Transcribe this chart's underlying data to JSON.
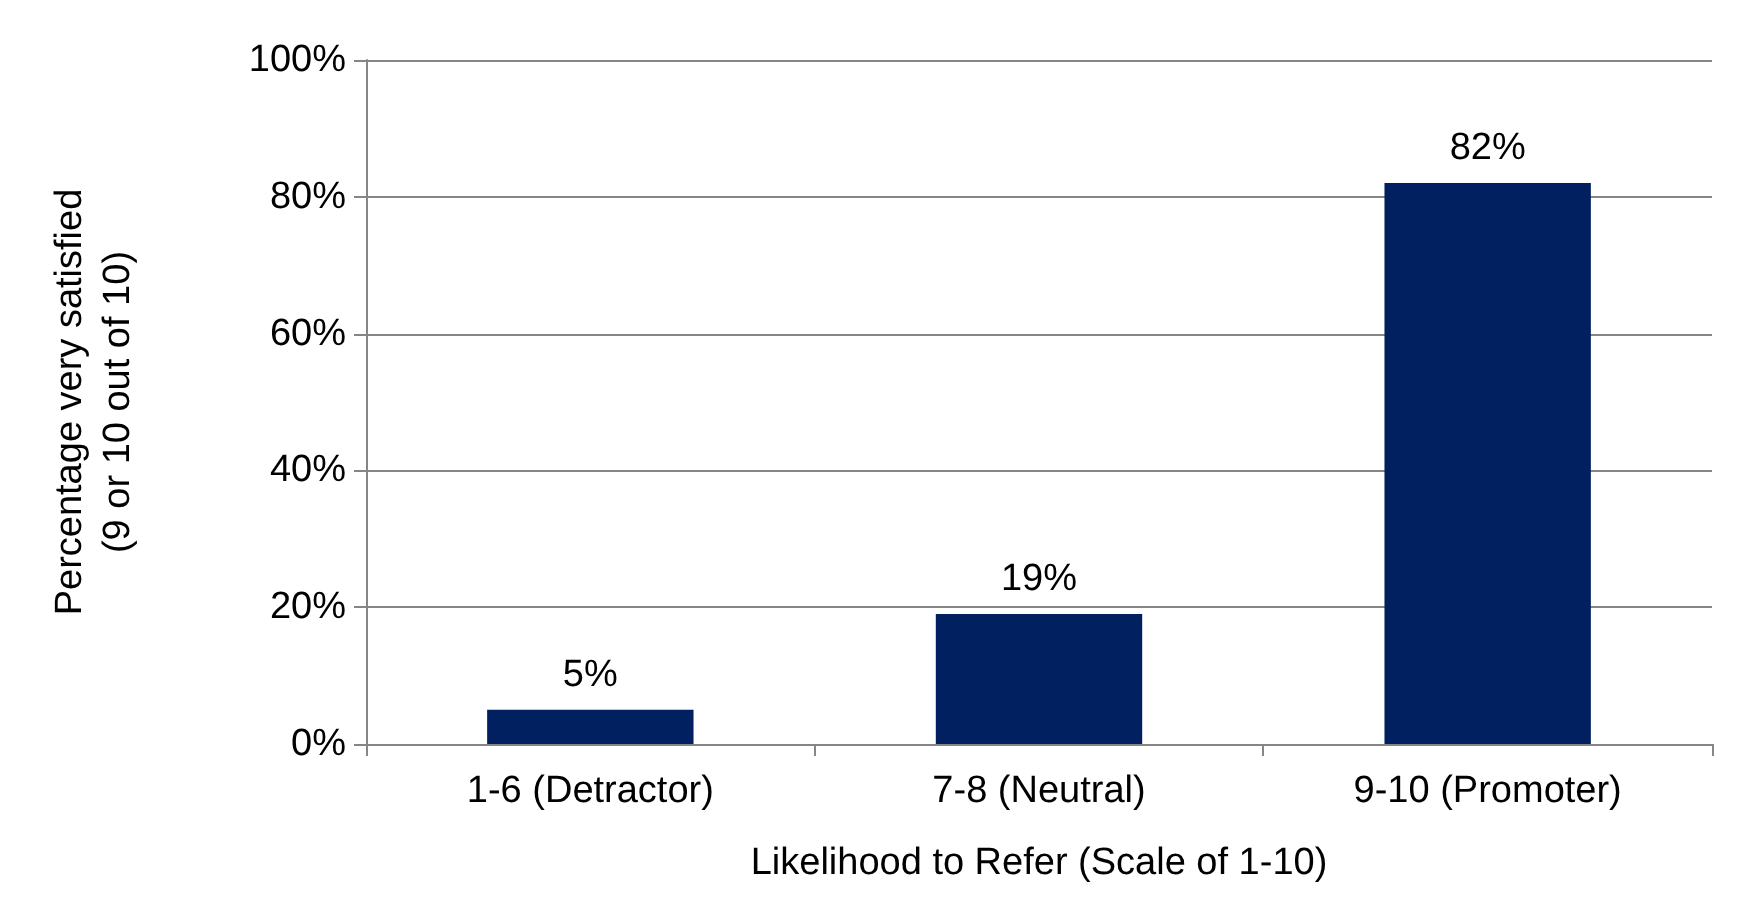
{
  "chart_data": {
    "type": "bar",
    "xlabel": "Likelihood to Refer (Scale of 1-10)",
    "ylabel": "Percentage very satisfied\n(9 or 10 out of 10)",
    "categories": [
      "1-6 (Detractor)",
      "7-8 (Neutral)",
      "9-10 (Promoter)"
    ],
    "values": [
      5,
      19,
      82
    ],
    "value_labels": [
      "5%",
      "19%",
      "82%"
    ],
    "color": "#002060",
    "ylim": [
      0,
      100
    ],
    "yticks": [
      {
        "value": 0,
        "label": "0%"
      },
      {
        "value": 20,
        "label": "20%"
      },
      {
        "value": 40,
        "label": "40%"
      },
      {
        "value": 60,
        "label": "60%"
      },
      {
        "value": 80,
        "label": "80%"
      },
      {
        "value": 100,
        "label": "100%"
      }
    ],
    "grid": "y"
  }
}
